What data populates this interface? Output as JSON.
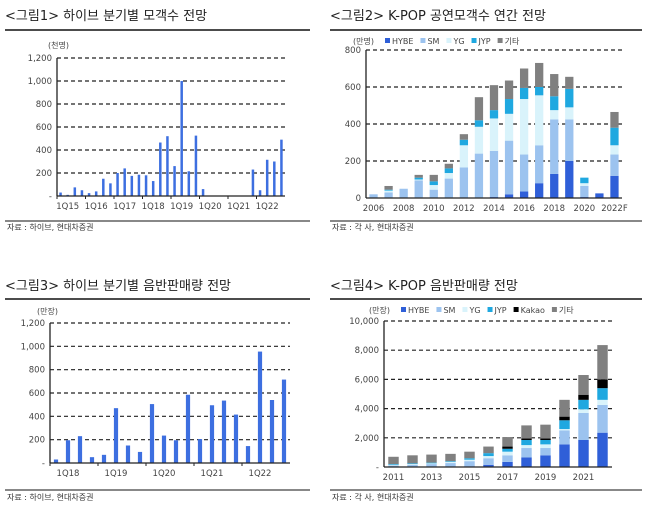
{
  "chart_data": [
    {
      "type": "bar",
      "title": "<그림1> 하이브 분기별 모객수 전망",
      "ylabel": "(천명)",
      "source": "자료 : 하이브, 현대차증권",
      "ylim": [
        0,
        1200
      ],
      "yticks": [
        "-",
        "200",
        "400",
        "600",
        "800",
        "1,000",
        "1,200"
      ],
      "xtick_labels": [
        "1Q15",
        "1Q16",
        "1Q17",
        "1Q18",
        "1Q19",
        "1Q20",
        "1Q21",
        "1Q22"
      ],
      "categories": [
        "1Q15",
        "2Q15",
        "3Q15",
        "4Q15",
        "1Q16",
        "2Q16",
        "3Q16",
        "4Q16",
        "1Q17",
        "2Q17",
        "3Q17",
        "4Q17",
        "1Q18",
        "2Q18",
        "3Q18",
        "4Q18",
        "1Q19",
        "2Q19",
        "3Q19",
        "4Q19",
        "1Q20",
        "2Q20",
        "3Q20",
        "4Q20",
        "1Q21",
        "2Q21",
        "3Q21",
        "4Q21",
        "1Q22",
        "2Q22",
        "3Q22",
        "4Q22"
      ],
      "values": [
        30,
        10,
        75,
        50,
        25,
        40,
        150,
        110,
        200,
        240,
        175,
        185,
        180,
        130,
        465,
        520,
        260,
        1000,
        215,
        525,
        60,
        0,
        0,
        0,
        0,
        0,
        0,
        230,
        50,
        315,
        300,
        490
      ],
      "color": "#3d6fe0"
    },
    {
      "type": "bar",
      "stacked": true,
      "title": "<그림2> K-POP 공연모객수 연간 전망",
      "ylabel": "(만명)",
      "source": "자료 : 각 사, 현대차증권",
      "ylim": [
        0,
        800
      ],
      "yticks": [
        "0",
        "200",
        "400",
        "600",
        "800"
      ],
      "xtick_labels": [
        "2006",
        "2008",
        "2010",
        "2012",
        "2014",
        "2016",
        "2018",
        "2020",
        "2022F"
      ],
      "categories": [
        "2006",
        "2007",
        "2008",
        "2009",
        "2010",
        "2011",
        "2012",
        "2013",
        "2014",
        "2015",
        "2016",
        "2017",
        "2018",
        "2019",
        "2020",
        "2021",
        "2022F"
      ],
      "series": [
        {
          "name": "HYBE",
          "color": "#2f5fd8",
          "values": [
            0,
            0,
            0,
            0,
            0,
            0,
            0,
            0,
            5,
            20,
            35,
            80,
            130,
            200,
            5,
            25,
            120
          ]
        },
        {
          "name": "SM",
          "color": "#9cc3ef",
          "values": [
            20,
            30,
            50,
            95,
            45,
            105,
            165,
            240,
            250,
            290,
            200,
            205,
            295,
            225,
            60,
            0,
            115
          ]
        },
        {
          "name": "YG",
          "color": "#d9f3fb",
          "values": [
            0,
            10,
            0,
            5,
            25,
            30,
            120,
            145,
            175,
            145,
            300,
            270,
            50,
            65,
            15,
            0,
            50
          ]
        },
        {
          "name": "JYP",
          "color": "#1fa8e0",
          "values": [
            0,
            5,
            0,
            10,
            20,
            25,
            30,
            35,
            45,
            80,
            60,
            45,
            75,
            100,
            30,
            0,
            95
          ]
        },
        {
          "name": "기타",
          "color": "#808080",
          "values": [
            0,
            20,
            0,
            15,
            35,
            25,
            30,
            125,
            135,
            100,
            105,
            130,
            120,
            65,
            0,
            0,
            85
          ]
        }
      ]
    },
    {
      "type": "bar",
      "title": "<그림3> 하이브 분기별 음반판매량 전망",
      "ylabel": "(만장)",
      "source": "자료 : 하이브, 현대차증권",
      "ylim": [
        0,
        1200
      ],
      "yticks": [
        "-",
        "200",
        "400",
        "600",
        "800",
        "1,000",
        "1,200"
      ],
      "xtick_labels": [
        "1Q18",
        "1Q19",
        "1Q20",
        "1Q21",
        "1Q22"
      ],
      "categories": [
        "1Q18",
        "2Q18",
        "3Q18",
        "4Q18",
        "1Q19",
        "2Q19",
        "3Q19",
        "4Q19",
        "1Q20",
        "2Q20",
        "3Q20",
        "4Q20",
        "1Q21",
        "2Q21",
        "3Q21",
        "4Q21",
        "1Q22",
        "2Q22",
        "3Q22",
        "4Q22"
      ],
      "values": [
        30,
        195,
        230,
        50,
        70,
        470,
        150,
        95,
        505,
        235,
        195,
        585,
        205,
        495,
        535,
        415,
        145,
        955,
        540,
        715
      ],
      "color": "#3d6fe0"
    },
    {
      "type": "bar",
      "stacked": true,
      "title": "<그림4> K-POP 음반판매량 전망",
      "ylabel": "(만장)",
      "source": "자료 : 각 사, 현대차증권",
      "ylim": [
        0,
        10000
      ],
      "yticks": [
        "-",
        "2,000",
        "4,000",
        "6,000",
        "8,000",
        "10,000"
      ],
      "xtick_labels": [
        "2011",
        "2013",
        "2015",
        "2017",
        "2019",
        "2021"
      ],
      "categories": [
        "2011",
        "2012",
        "2013",
        "2014",
        "2015",
        "2016",
        "2017",
        "2018",
        "2019",
        "2020",
        "2021",
        "2022"
      ],
      "series": [
        {
          "name": "HYBE",
          "color": "#2f5fd8",
          "values": [
            0,
            0,
            0,
            20,
            50,
            150,
            350,
            650,
            800,
            1550,
            1850,
            2350
          ]
        },
        {
          "name": "SM",
          "color": "#9cc3ef",
          "values": [
            100,
            150,
            200,
            250,
            350,
            450,
            450,
            650,
            500,
            950,
            1850,
            1900
          ]
        },
        {
          "name": "YG",
          "color": "#d9f3fb",
          "values": [
            50,
            50,
            50,
            80,
            100,
            150,
            250,
            200,
            250,
            100,
            250,
            350
          ]
        },
        {
          "name": "JYP",
          "color": "#1fa8e0",
          "values": [
            50,
            50,
            50,
            50,
            100,
            200,
            200,
            350,
            300,
            600,
            650,
            800
          ]
        },
        {
          "name": "Kakao",
          "color": "#000000",
          "values": [
            0,
            0,
            0,
            0,
            0,
            0,
            150,
            100,
            100,
            250,
            350,
            600
          ]
        },
        {
          "name": "기타",
          "color": "#808080",
          "values": [
            500,
            550,
            550,
            500,
            450,
            450,
            650,
            900,
            950,
            1150,
            1350,
            2350
          ]
        }
      ]
    }
  ]
}
